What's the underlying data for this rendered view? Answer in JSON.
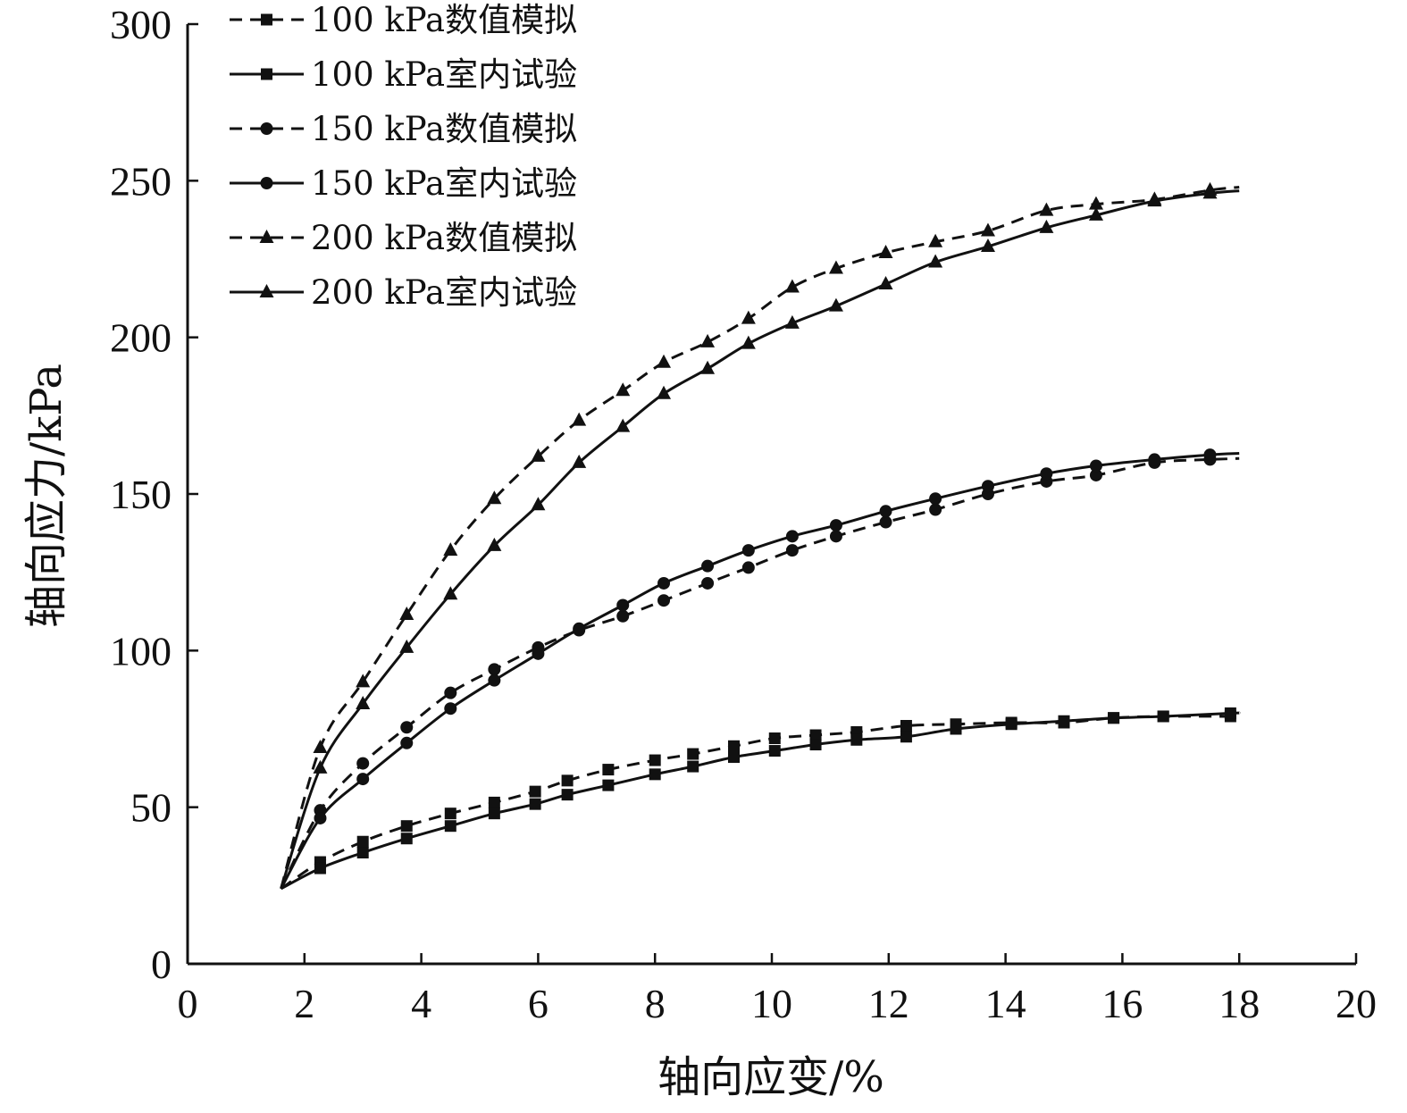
{
  "chart_data": {
    "type": "line",
    "title": "",
    "xlabel": "轴向应变/%",
    "ylabel": "轴向应力/kPa",
    "xlim": [
      0,
      20
    ],
    "ylim": [
      0,
      300
    ],
    "xticks": [
      0,
      2,
      4,
      6,
      8,
      10,
      12,
      14,
      16,
      18,
      20
    ],
    "yticks": [
      0,
      50,
      100,
      150,
      200,
      250,
      300
    ],
    "xtick_labels": [
      "0",
      "2",
      "4",
      "6",
      "8",
      "10",
      "12",
      "14",
      "16",
      "18",
      "20"
    ],
    "ytick_labels": [
      "0",
      "50",
      "100",
      "150",
      "200",
      "250",
      "300"
    ],
    "grid": false,
    "legend_position": "top-left",
    "series": [
      {
        "name": "100 kPa数值模拟",
        "marker": "square",
        "dash": "dashed",
        "color": "#111111",
        "x": [
          1.6,
          2.27,
          3.0,
          3.75,
          4.5,
          5.25,
          5.95,
          6.5,
          7.2,
          8.0,
          8.65,
          9.35,
          10.05,
          10.75,
          11.45,
          12.3,
          13.15,
          14.1,
          15.0,
          15.85,
          16.7,
          17.85
        ],
        "y": [
          24,
          32.5,
          39,
          44,
          48,
          51.5,
          55,
          58.5,
          62,
          65,
          67,
          69.5,
          72,
          73,
          74,
          76,
          76.5,
          77,
          77,
          78.5,
          79,
          79
        ]
      },
      {
        "name": "100 kPa室内试验",
        "marker": "square",
        "dash": "solid",
        "color": "#111111",
        "x": [
          1.6,
          2.27,
          3.0,
          3.75,
          4.5,
          5.25,
          5.95,
          6.5,
          7.2,
          8.0,
          8.65,
          9.35,
          10.05,
          10.75,
          11.45,
          12.3,
          13.15,
          14.1,
          15.0,
          15.85,
          16.7,
          17.85
        ],
        "y": [
          24,
          30.5,
          35.5,
          40,
          44,
          48,
          51,
          54,
          57,
          60.5,
          63,
          66,
          68,
          70,
          71.5,
          72.5,
          75,
          76.5,
          77.5,
          78.5,
          79,
          80
        ]
      },
      {
        "name": "150 kPa数值模拟",
        "marker": "circle",
        "dash": "dashed",
        "color": "#111111",
        "x": [
          1.6,
          2.27,
          3.0,
          3.75,
          4.5,
          5.25,
          6.0,
          6.7,
          7.45,
          8.15,
          8.9,
          9.6,
          10.35,
          11.1,
          11.95,
          12.8,
          13.7,
          14.7,
          15.55,
          16.55,
          17.5
        ],
        "y": [
          24,
          49,
          64,
          75.5,
          86.5,
          94,
          101,
          106.5,
          111,
          116,
          121.5,
          126.5,
          132,
          136.5,
          141,
          145,
          150,
          154,
          156,
          160,
          161
        ]
      },
      {
        "name": "150 kPa室内试验",
        "marker": "circle",
        "dash": "solid",
        "color": "#111111",
        "x": [
          1.6,
          2.27,
          3.0,
          3.75,
          4.5,
          5.25,
          6.0,
          6.7,
          7.45,
          8.15,
          8.9,
          9.6,
          10.35,
          11.1,
          11.95,
          12.8,
          13.7,
          14.7,
          15.55,
          16.55,
          17.5
        ],
        "y": [
          24,
          46.5,
          59,
          70.5,
          81.5,
          90.5,
          99,
          107,
          114.5,
          121.5,
          127,
          132,
          136.5,
          140,
          144.5,
          148.5,
          152.5,
          156.5,
          159,
          161,
          162.5
        ]
      },
      {
        "name": "200 kPa数值模拟",
        "marker": "triangle",
        "dash": "dashed",
        "color": "#111111",
        "x": [
          1.6,
          2.27,
          3.0,
          3.75,
          4.5,
          5.25,
          6.0,
          6.7,
          7.45,
          8.15,
          8.9,
          9.6,
          10.35,
          11.1,
          11.95,
          12.8,
          13.7,
          14.7,
          15.55,
          16.55,
          17.5
        ],
        "y": [
          24,
          69,
          90,
          111.5,
          132,
          148.5,
          162,
          173.5,
          183,
          192,
          198.5,
          206,
          216,
          222,
          227,
          230.5,
          234,
          240.5,
          242.5,
          244,
          247
        ]
      },
      {
        "name": "200 kPa室内试验",
        "marker": "triangle",
        "dash": "solid",
        "color": "#111111",
        "x": [
          1.6,
          2.27,
          3.0,
          3.75,
          4.5,
          5.25,
          6.0,
          6.7,
          7.45,
          8.15,
          8.9,
          9.6,
          10.35,
          11.1,
          11.95,
          12.8,
          13.7,
          14.7,
          15.55,
          16.55,
          17.5
        ],
        "y": [
          24,
          62.5,
          83,
          101,
          118,
          133.5,
          146.5,
          160,
          171.5,
          182,
          190,
          198,
          204.5,
          210,
          217,
          224,
          229,
          235,
          239,
          243.5,
          246
        ]
      }
    ]
  }
}
